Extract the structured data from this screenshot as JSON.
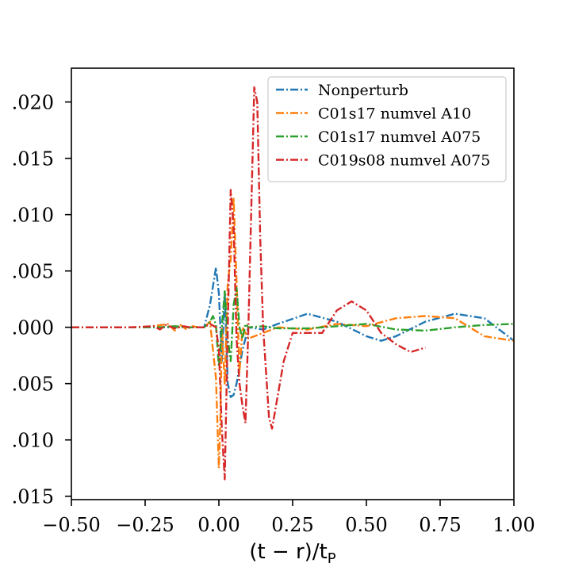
{
  "chart_data": {
    "type": "line",
    "title": "",
    "xlabel": "(t − r)/t",
    "xlabel_sub": "P",
    "ylabel": "",
    "xlim": [
      -0.5,
      1.0
    ],
    "ylim": [
      -0.0153,
      0.023
    ],
    "x_ticks": [
      -0.5,
      -0.25,
      0.0,
      0.25,
      0.5,
      0.75,
      1.0
    ],
    "x_tick_labels": [
      "−0.50",
      "−0.25",
      "0.00",
      "0.25",
      "0.50",
      "0.75",
      "1.00"
    ],
    "y_ticks": [
      -0.015,
      -0.01,
      -0.005,
      0.0,
      0.005,
      0.01,
      0.015,
      0.02
    ],
    "y_tick_labels": [
      ".015",
      ".010",
      ".005",
      ".000",
      ".005",
      ".010",
      ".015",
      ".020"
    ],
    "grid": false,
    "legend_position": "top-right",
    "series": [
      {
        "name": "Nonperturb",
        "color": "#1f77b4",
        "x": [
          -0.5,
          -0.3,
          -0.05,
          -0.03,
          -0.01,
          0.0,
          0.01,
          0.02,
          0.03,
          0.04,
          0.05,
          0.06,
          0.08,
          0.1,
          0.15,
          0.2,
          0.3,
          0.4,
          0.5,
          0.55,
          0.6,
          0.7,
          0.8,
          0.9,
          1.0
        ],
        "y": [
          0.0,
          0.0,
          0.0,
          0.002,
          0.0053,
          0.003,
          -0.003,
          0.003,
          -0.005,
          -0.0062,
          -0.006,
          -0.005,
          -0.002,
          0.0,
          -0.0002,
          0.0003,
          0.0012,
          0.0005,
          -0.0008,
          -0.0012,
          -0.0008,
          0.0005,
          0.0012,
          0.0008,
          -0.0012
        ]
      },
      {
        "name": "C01s17 numvel A10",
        "color": "#ff7f0e",
        "x": [
          -0.5,
          -0.25,
          -0.17,
          -0.15,
          -0.13,
          -0.11,
          -0.09,
          -0.07,
          -0.05,
          -0.03,
          -0.01,
          0.0,
          0.005,
          0.01,
          0.02,
          0.03,
          0.04,
          0.05,
          0.06,
          0.07,
          0.08,
          0.1,
          0.2,
          0.3,
          0.4,
          0.5,
          0.6,
          0.7,
          0.8,
          0.9,
          1.0
        ],
        "y": [
          0.0,
          0.0,
          0.0003,
          -0.0003,
          0.0002,
          -0.0002,
          0.0001,
          0.0,
          0.0,
          0.0005,
          -0.0045,
          -0.0125,
          -0.008,
          0.0,
          -0.005,
          0.004,
          0.006,
          0.0115,
          0.004,
          -0.004,
          0.0,
          -0.001,
          0.0,
          -0.0002,
          0.0003,
          0.0001,
          0.0008,
          0.001,
          0.0008,
          -0.0008,
          -0.0012
        ]
      },
      {
        "name": "C01s17 numvel A075",
        "color": "#2ca02c",
        "x": [
          -0.5,
          -0.2,
          -0.15,
          -0.1,
          -0.05,
          -0.03,
          -0.02,
          -0.01,
          0.0,
          0.01,
          0.02,
          0.03,
          0.04,
          0.05,
          0.06,
          0.07,
          0.08,
          0.09,
          0.1,
          0.15,
          0.2,
          0.3,
          0.4,
          0.5,
          0.6,
          0.7,
          0.8,
          0.9,
          1.0
        ],
        "y": [
          0.0,
          0.0,
          0.0001,
          0.0,
          0.0,
          0.0005,
          0.001,
          0.0002,
          -0.0035,
          0.0,
          0.0032,
          -0.001,
          -0.003,
          0.002,
          0.0035,
          0.0,
          -0.001,
          0.0003,
          0.0,
          0.0001,
          -0.0001,
          -0.0001,
          0.0001,
          0.0003,
          -0.0002,
          -0.0003,
          0.0,
          0.0002,
          0.0003
        ]
      },
      {
        "name": "C019s08 numvel A075",
        "color": "#d62728",
        "x": [
          -0.5,
          -0.3,
          -0.22,
          -0.2,
          -0.18,
          -0.15,
          -0.12,
          -0.1,
          -0.08,
          -0.05,
          -0.03,
          -0.01,
          0.0,
          0.01,
          0.02,
          0.03,
          0.04,
          0.05,
          0.06,
          0.07,
          0.08,
          0.09,
          0.1,
          0.12,
          0.13,
          0.14,
          0.15,
          0.17,
          0.18,
          0.2,
          0.22,
          0.25,
          0.3,
          0.35,
          0.4,
          0.45,
          0.5,
          0.55,
          0.6,
          0.65,
          0.7
        ],
        "y": [
          0.0,
          0.0,
          0.0001,
          -0.0002,
          0.0002,
          -0.0001,
          0.0001,
          0.0,
          0.0,
          0.0,
          0.0003,
          0.0,
          -0.002,
          -0.009,
          -0.0135,
          0.0,
          0.0122,
          0.009,
          -0.001,
          -0.005,
          -0.007,
          -0.0085,
          0.0,
          0.0213,
          0.02,
          0.008,
          0.0,
          -0.008,
          -0.009,
          -0.006,
          -0.003,
          -0.0005,
          -0.0005,
          -0.0005,
          0.0015,
          0.0023,
          0.0015,
          -0.0005,
          -0.0015,
          -0.0022,
          -0.0018
        ]
      }
    ]
  }
}
